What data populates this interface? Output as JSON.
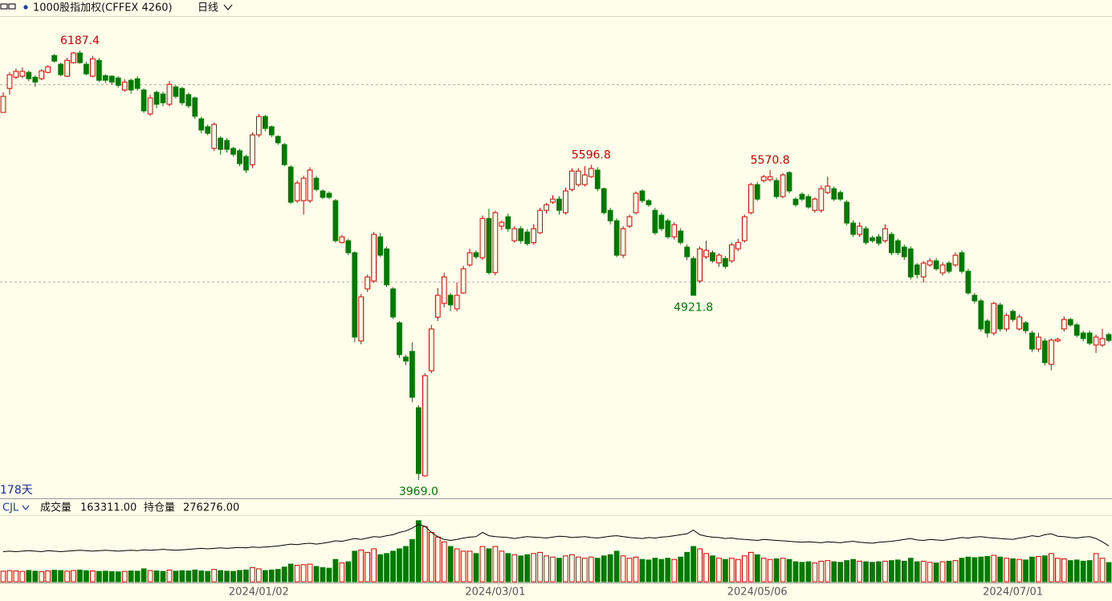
{
  "header": {
    "title": "1000股指加权(CFFEX 4260)",
    "period": "日线",
    "span": "178天"
  },
  "chart_data": {
    "type": "candlestick",
    "up_color": "#d40000",
    "down_color": "#007a00",
    "ylim": [
      3878,
      6366
    ],
    "ygrid": [
      4995,
      6012
    ],
    "categories": [
      null,
      null,
      null,
      null,
      null,
      null,
      null,
      null,
      null,
      null,
      null,
      null,
      null,
      null,
      null,
      null,
      null,
      null,
      null,
      null,
      null,
      null,
      null,
      null,
      null,
      null,
      null,
      null,
      null,
      null,
      null,
      null,
      null,
      null,
      null,
      null,
      null,
      null,
      null,
      null,
      "2024/01/02",
      null,
      null,
      null,
      null,
      null,
      null,
      null,
      null,
      null,
      null,
      null,
      null,
      null,
      null,
      null,
      null,
      null,
      null,
      null,
      null,
      null,
      null,
      null,
      null,
      null,
      null,
      null,
      null,
      null,
      null,
      null,
      null,
      null,
      null,
      null,
      null,
      "2024/03/01",
      null,
      null,
      null,
      null,
      null,
      null,
      null,
      null,
      null,
      null,
      null,
      null,
      null,
      null,
      null,
      null,
      null,
      null,
      null,
      null,
      null,
      null,
      null,
      null,
      null,
      null,
      null,
      null,
      null,
      null,
      null,
      null,
      null,
      null,
      null,
      null,
      null,
      null,
      null,
      null,
      "2024/05/06",
      null,
      null,
      null,
      null,
      null,
      null,
      null,
      null,
      null,
      null,
      null,
      null,
      null,
      null,
      null,
      null,
      null,
      null,
      null,
      null,
      null,
      null,
      null,
      null,
      null,
      null,
      null,
      null,
      null,
      null,
      null,
      null,
      null,
      null,
      null,
      null,
      null,
      null,
      null,
      "2024/07/01",
      null,
      null,
      null,
      null,
      null,
      null,
      null,
      null,
      null,
      null,
      null,
      null,
      null,
      null,
      null
    ],
    "open": [
      5868,
      5992,
      6050,
      6055,
      6075,
      6050,
      6042,
      6075,
      6162,
      6117,
      6055,
      6125,
      6175,
      6117,
      6055,
      6137,
      6058,
      6055,
      6046,
      5984,
      6034,
      6042,
      5984,
      5860,
      5972,
      5963,
      5910,
      6000,
      5992,
      5960,
      5943,
      5835,
      5794,
      5682,
      5735,
      5723,
      5682,
      5670,
      5640,
      5598,
      5752,
      5847,
      5794,
      5744,
      5702,
      5586,
      5412,
      5412,
      5412,
      5528,
      5462,
      5450,
      5412,
      5196,
      5205,
      5143,
      4687,
      4956,
      4997,
      5225,
      5163,
      4956,
      4781,
      4604,
      4633,
      4342,
      3990,
      4533,
      4810,
      4881,
      4923,
      4853,
      4935,
      5080,
      5143,
      5117,
      5320,
      5040,
      5280,
      5329,
      5205,
      5267,
      5250,
      5195,
      5246,
      5362,
      5404,
      5420,
      5350,
      5470,
      5495,
      5495,
      5536,
      5570,
      5474,
      5362,
      5308,
      5130,
      5280,
      5350,
      5462,
      5412,
      5362,
      5337,
      5308,
      5225,
      5255,
      5172,
      5113,
      4997,
      5122,
      5143,
      5090,
      5113,
      5101,
      5163,
      5205,
      5350,
      5495,
      5516,
      5520,
      5516,
      5433,
      5557,
      5420,
      5445,
      5433,
      5362,
      5362,
      5454,
      5474,
      5454,
      5404,
      5296,
      5238,
      5267,
      5220,
      5225,
      5205,
      5238,
      5205,
      5172,
      5163,
      5080,
      5018,
      5080,
      5101,
      5039,
      5089,
      5080,
      5143,
      5047,
      4923,
      4894,
      4790,
      4728,
      4873,
      4749,
      4840,
      4749,
      4781,
      4728,
      4645,
      4687,
      4566,
      4687,
      4749,
      4798,
      4770,
      4728,
      4728,
      4666,
      4666,
      4720
    ],
    "high": [
      5972,
      6075,
      6095,
      6100,
      6085,
      6060,
      6092,
      6112,
      6170,
      6125,
      6150,
      6180,
      6187.4,
      6130,
      6160,
      6150,
      6065,
      6060,
      6055,
      6040,
      6042,
      6055,
      5992,
      5960,
      5980,
      5975,
      6030,
      6010,
      6000,
      5970,
      5950,
      5845,
      5805,
      5815,
      5745,
      5735,
      5690,
      5680,
      5650,
      5765,
      5860,
      5855,
      5800,
      5750,
      5710,
      5595,
      5515,
      5540,
      5585,
      5540,
      5470,
      5460,
      5420,
      5235,
      5215,
      5150,
      4930,
      5030,
      5250,
      5245,
      5175,
      4965,
      4790,
      4615,
      4680,
      4355,
      4520,
      4770,
      4960,
      5040,
      4935,
      4990,
      5075,
      5163,
      5155,
      5335,
      5370,
      5360,
      5310,
      5345,
      5280,
      5280,
      5265,
      5290,
      5375,
      5400,
      5440,
      5435,
      5480,
      5580,
      5580,
      5590,
      5596.8,
      5585,
      5480,
      5375,
      5320,
      5280,
      5340,
      5460,
      5470,
      5420,
      5375,
      5350,
      5320,
      5300,
      5270,
      5185,
      5125,
      5175,
      5205,
      5155,
      5140,
      5125,
      5195,
      5215,
      5340,
      5505,
      5510,
      5545,
      5570.8,
      5530,
      5555,
      5565,
      5430,
      5455,
      5445,
      5430,
      5490,
      5535,
      5485,
      5465,
      5415,
      5310,
      5300,
      5280,
      5230,
      5240,
      5290,
      5250,
      5215,
      5185,
      5175,
      5090,
      5100,
      5115,
      5115,
      5095,
      5100,
      5145,
      5155,
      5060,
      4935,
      4905,
      4800,
      4890,
      4885,
      4830,
      4850,
      4825,
      4790,
      4740,
      4730,
      4700,
      4700,
      4705,
      4815,
      4805,
      4780,
      4740,
      4740,
      4720,
      4750,
      4730
    ],
    "low": [
      5868,
      5960,
      6040,
      6045,
      6030,
      6000,
      6035,
      6070,
      6125,
      6055,
      6050,
      6120,
      6120,
      6060,
      6050,
      6025,
      6020,
      6010,
      5995,
      5975,
      5965,
      5980,
      5865,
      5850,
      5890,
      5900,
      5900,
      5940,
      5905,
      5890,
      5835,
      5760,
      5750,
      5670,
      5650,
      5660,
      5640,
      5590,
      5555,
      5580,
      5740,
      5770,
      5740,
      5700,
      5590,
      5395,
      5400,
      5340,
      5400,
      5460,
      5420,
      5420,
      5195,
      5190,
      5130,
      4680,
      4670,
      4940,
      4985,
      5120,
      4965,
      4800,
      4600,
      4562,
      4370,
      3969,
      3985,
      4520,
      4790,
      4860,
      4840,
      4840,
      4930,
      5070,
      5110,
      5105,
      5030,
      5025,
      5260,
      5250,
      5195,
      5190,
      5180,
      5185,
      5240,
      5345,
      5395,
      5340,
      5340,
      5460,
      5485,
      5485,
      5530,
      5460,
      5340,
      5290,
      5120,
      5115,
      5270,
      5340,
      5400,
      5380,
      5235,
      5255,
      5215,
      5210,
      5185,
      5105,
      4921.8,
      4985,
      5110,
      5090,
      5070,
      5060,
      5090,
      5150,
      5195,
      5340,
      5410,
      5505,
      5510,
      5420,
      5425,
      5450,
      5380,
      5410,
      5370,
      5350,
      5350,
      5445,
      5410,
      5410,
      5285,
      5225,
      5225,
      5185,
      5195,
      5180,
      5195,
      5130,
      5130,
      5105,
      5005,
      5010,
      4990,
      5070,
      5050,
      5025,
      5035,
      5070,
      5035,
      4925,
      4880,
      4735,
      4705,
      4715,
      4735,
      4735,
      4785,
      4740,
      4725,
      4630,
      4630,
      4560,
      4535,
      4680,
      4735,
      4760,
      4705,
      4685,
      4665,
      4625,
      4655,
      4680
    ],
    "close": [
      5951,
      6063,
      6080,
      6080,
      6042,
      6025,
      6083,
      6104,
      6133,
      6063,
      6137,
      6175,
      6125,
      6067,
      6145,
      6034,
      6034,
      6025,
      6008,
      6025,
      5984,
      5992,
      5876,
      5943,
      5910,
      5918,
      6013,
      5951,
      5918,
      5902,
      5848,
      5777,
      5760,
      5806,
      5677,
      5677,
      5652,
      5603,
      5570,
      5752,
      5847,
      5785,
      5752,
      5711,
      5598,
      5404,
      5503,
      5528,
      5570,
      5470,
      5429,
      5429,
      5205,
      5225,
      5143,
      4707,
      4915,
      5018,
      5238,
      5130,
      4977,
      4811,
      4616,
      4583,
      4396,
      4002,
      4508,
      4749,
      4923,
      5018,
      4873,
      4923,
      5060,
      5143,
      5122,
      5320,
      5040,
      5350,
      5300,
      5267,
      5267,
      5205,
      5190,
      5267,
      5362,
      5391,
      5420,
      5362,
      5462,
      5565,
      5565,
      5545,
      5578,
      5474,
      5350,
      5308,
      5130,
      5267,
      5329,
      5450,
      5412,
      5391,
      5246,
      5267,
      5225,
      5288,
      5196,
      5122,
      4923,
      5163,
      5155,
      5101,
      5130,
      5072,
      5184,
      5196,
      5329,
      5495,
      5420,
      5536,
      5536,
      5433,
      5545,
      5462,
      5391,
      5420,
      5379,
      5420,
      5474,
      5487,
      5420,
      5420,
      5296,
      5238,
      5280,
      5196,
      5205,
      5192,
      5267,
      5143,
      5143,
      5122,
      5018,
      5030,
      5089,
      5101,
      5060,
      5080,
      5047,
      5130,
      5047,
      4935,
      4894,
      4749,
      4728,
      4881,
      4749,
      4819,
      4798,
      4811,
      4740,
      4645,
      4707,
      4575,
      4691,
      4695,
      4798,
      4770,
      4716,
      4699,
      4675,
      4707,
      4699,
      4690
    ],
    "annotations": [
      {
        "value": 6187.4,
        "label": "6187.4"
      },
      {
        "value": 5596.8,
        "label": "5596.8"
      },
      {
        "value": 5570.8,
        "label": "5570.8"
      },
      {
        "value": 4921.8,
        "label": "4921.8"
      },
      {
        "value": 3969,
        "label": "3969.0"
      }
    ],
    "indicator": "CJL",
    "volume": {
      "name": "成交量",
      "label": "163311.00",
      "ylim": [
        0,
        560000
      ],
      "values": [
        90000,
        95000,
        92000,
        88000,
        96000,
        90000,
        85000,
        92000,
        98000,
        95000,
        90000,
        96000,
        100000,
        94000,
        92000,
        88000,
        90000,
        86000,
        84000,
        88000,
        92000,
        90000,
        110000,
        95000,
        92000,
        88000,
        100000,
        90000,
        94000,
        92000,
        100000,
        92000,
        88000,
        105000,
        95000,
        90000,
        88000,
        96000,
        100000,
        120000,
        110000,
        95000,
        100000,
        105000,
        125000,
        150000,
        140000,
        145000,
        150000,
        130000,
        120000,
        115000,
        190000,
        160000,
        170000,
        260000,
        270000,
        250000,
        280000,
        230000,
        240000,
        260000,
        280000,
        300000,
        360000,
        520000,
        470000,
        420000,
        380000,
        340000,
        300000,
        280000,
        260000,
        260000,
        240000,
        300000,
        280000,
        300000,
        260000,
        240000,
        230000,
        220000,
        230000,
        240000,
        250000,
        220000,
        210000,
        200000,
        220000,
        230000,
        210000,
        200000,
        210000,
        200000,
        220000,
        230000,
        260000,
        220000,
        200000,
        210000,
        190000,
        185000,
        200000,
        190000,
        200000,
        190000,
        210000,
        250000,
        300000,
        280000,
        240000,
        220000,
        200000,
        190000,
        200000,
        190000,
        220000,
        250000,
        230000,
        200000,
        190000,
        195000,
        200000,
        190000,
        170000,
        165000,
        170000,
        160000,
        175000,
        180000,
        170000,
        165000,
        180000,
        190000,
        175000,
        170000,
        165000,
        170000,
        175000,
        180000,
        185000,
        175000,
        200000,
        170000,
        175000,
        165000,
        160000,
        170000,
        175000,
        180000,
        200000,
        210000,
        205000,
        210000,
        215000,
        225000,
        210000,
        200000,
        195000,
        190000,
        185000,
        210000,
        215000,
        220000,
        240000,
        200000,
        195000,
        180000,
        185000,
        175000,
        180000,
        240000,
        200000,
        163311
      ]
    },
    "open_interest": {
      "name": "持仓量",
      "label": "276276.00",
      "color": "#000000",
      "ylim": [
        200000,
        340000
      ],
      "values": [
        264000,
        265000,
        264000,
        265000,
        266000,
        265000,
        264000,
        266000,
        265000,
        264000,
        265000,
        266000,
        267000,
        266000,
        265000,
        266000,
        267000,
        266000,
        265000,
        266000,
        267000,
        266000,
        268000,
        267000,
        268000,
        269000,
        268000,
        267000,
        268000,
        269000,
        270000,
        271000,
        270000,
        271000,
        272000,
        271000,
        272000,
        273000,
        272000,
        274000,
        273000,
        274000,
        275000,
        276000,
        278000,
        280000,
        279000,
        281000,
        282000,
        280000,
        282000,
        284000,
        287000,
        286000,
        289000,
        292000,
        290000,
        293000,
        296000,
        295000,
        298000,
        300000,
        305000,
        308000,
        314000,
        322000,
        318000,
        305000,
        296000,
        290000,
        288000,
        290000,
        293000,
        295000,
        296000,
        305000,
        298000,
        296000,
        295000,
        294000,
        292000,
        294000,
        296000,
        295000,
        294000,
        293000,
        295000,
        297000,
        296000,
        294000,
        295000,
        296000,
        294000,
        293000,
        295000,
        297000,
        298000,
        296000,
        294000,
        293000,
        292000,
        294000,
        293000,
        295000,
        296000,
        298000,
        300000,
        302000,
        310000,
        300000,
        297000,
        295000,
        294000,
        292000,
        293000,
        291000,
        290000,
        289000,
        288000,
        290000,
        289000,
        288000,
        287000,
        286000,
        285000,
        284000,
        285000,
        284000,
        283000,
        285000,
        284000,
        283000,
        285000,
        286000,
        284000,
        283000,
        282000,
        284000,
        285000,
        286000,
        288000,
        290000,
        292000,
        289000,
        288000,
        290000,
        289000,
        288000,
        290000,
        292000,
        294000,
        293000,
        295000,
        296000,
        294000,
        293000,
        292000,
        291000,
        290000,
        293000,
        295000,
        298000,
        296000,
        300000,
        302000,
        297000,
        296000,
        294000,
        293000,
        295000,
        296000,
        292000,
        285000,
        276276
      ]
    }
  }
}
